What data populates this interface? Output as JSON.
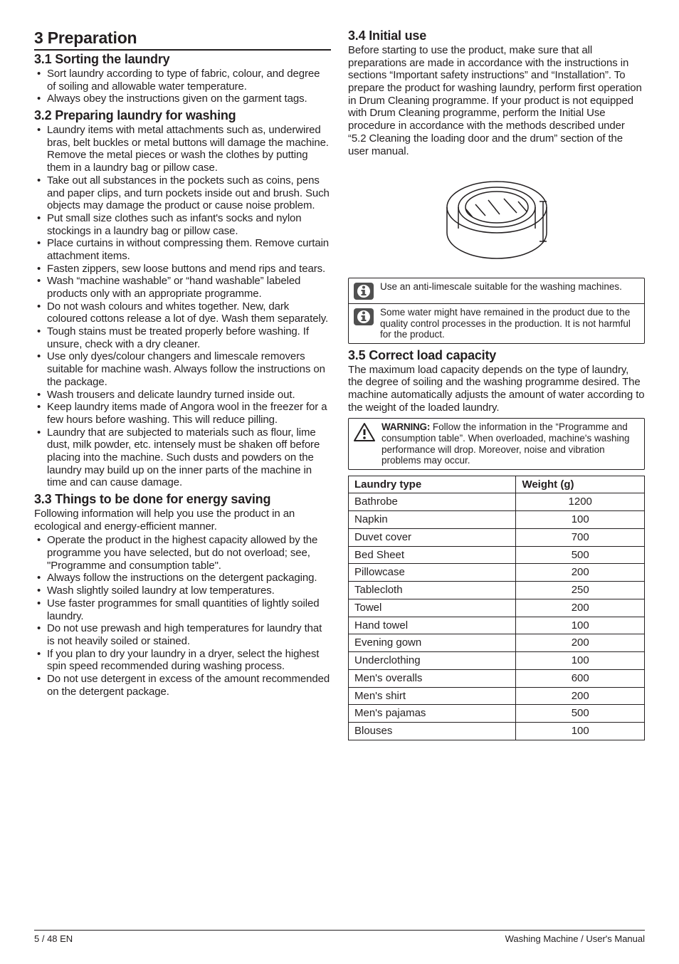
{
  "left": {
    "section_heading": "3   Preparation",
    "s31": {
      "h": "3.1 Sorting the laundry",
      "items": [
        "Sort laundry according to type of fabric, colour, and degree of soiling and allowable water temperature.",
        "Always obey the instructions given on the garment tags."
      ]
    },
    "s32": {
      "h": "3.2 Preparing laundry for washing",
      "items": [
        "Laundry items with metal attachments such as, underwired bras, belt buckles or metal buttons will damage the machine. Remove the metal pieces or wash the clothes by putting them in a laundry bag or pillow case.",
        "Take out all substances in the pockets such as coins, pens and paper clips, and turn pockets inside out and brush. Such objects may damage the product or cause noise problem.",
        "Put small size clothes such as infant's socks and nylon stockings in a laundry bag or pillow case.",
        "Place curtains in without compressing them. Remove curtain attachment items.",
        "Fasten zippers, sew loose buttons and mend rips and tears.",
        "Wash “machine washable” or “hand washable” labeled products only with an appropriate programme.",
        "Do not wash colours and whites together. New, dark coloured cottons release a lot of dye. Wash them separately.",
        "Tough stains must be treated properly before washing. If unsure, check with a dry cleaner.",
        "Use only dyes/colour changers and limescale removers suitable for machine wash. Always follow the instructions on the package.",
        "Wash trousers and delicate laundry turned inside out.",
        "Keep laundry items made of Angora wool in the freezer for a few hours before washing. This will reduce pilling.",
        "Laundry that are subjected to materials such as flour, lime dust, milk powder, etc. intensely must be shaken off before placing into the machine. Such dusts and powders on the laundry may build up on the inner parts of the machine in time and can cause damage."
      ]
    },
    "s33": {
      "h": "3.3 Things to be done for energy saving",
      "intro": "Following information will help you use the product in an ecological and energy-efficient manner.",
      "items": [
        "Operate the product in the highest capacity allowed by the programme you have selected, but do not overload; see, \"Programme and consumption table\".",
        "Always follow the instructions on the detergent packaging.",
        "Wash slightly soiled laundry at low temperatures.",
        "Use faster programmes for small quantities of lightly soiled laundry.",
        "Do not use prewash and high temperatures for laundry that is not heavily soiled or stained.",
        "If you plan to dry your laundry in a dryer, select the highest spin speed recommended during washing process.",
        "Do not use detergent in excess of the amount recommended on the detergent package."
      ]
    }
  },
  "right": {
    "s34": {
      "h": "3.4 Initial use",
      "p": "Before starting to use the product, make sure that all preparations are made in accordance with the instructions in sections “Important safety instructions” and “Installation”. To prepare the product for washing laundry, perform first operation in Drum Cleaning programme. If your product is not equipped with Drum Cleaning programme, perform the Initial Use procedure in accordance with the methods described under “5.2 Cleaning the loading door and the drum” section of the user manual."
    },
    "info1": "Use an anti-limescale suitable for the washing machines.",
    "info2": "Some water might have remained in the product due to the quality control processes in the production. It is not harmful for the product.",
    "s35": {
      "h": "3.5 Correct load capacity",
      "p": "The maximum load capacity depends on the type of laundry, the degree of soiling and the washing programme desired. The machine automatically adjusts the amount of water according to the weight of the loaded laundry."
    },
    "warn_lead": "WARNING:",
    "warn": " Follow the information in the “Programme and consumption table”. When overloaded, machine's washing performance will drop. Moreover, noise and vibration problems may occur.",
    "table": {
      "h_type": "Laundry type",
      "h_weight": "Weight (g)",
      "rows": [
        [
          "Bathrobe",
          "1200"
        ],
        [
          "Napkin",
          "100"
        ],
        [
          "Duvet cover",
          "700"
        ],
        [
          "Bed Sheet",
          "500"
        ],
        [
          "Pillowcase",
          "200"
        ],
        [
          "Tablecloth",
          "250"
        ],
        [
          "Towel",
          "200"
        ],
        [
          "Hand towel",
          "100"
        ],
        [
          "Evening gown",
          "200"
        ],
        [
          "Underclothing",
          "100"
        ],
        [
          "Men's overalls",
          "600"
        ],
        [
          "Men's shirt",
          "200"
        ],
        [
          "Men's pajamas",
          "500"
        ],
        [
          "Blouses",
          "100"
        ]
      ]
    }
  },
  "footer": {
    "left": "5 / 48 EN",
    "right": "Washing Machine / User's Manual"
  },
  "colors": {
    "text": "#231f20",
    "border": "#231f20",
    "info_bg": "#505050",
    "bg": "#ffffff"
  }
}
